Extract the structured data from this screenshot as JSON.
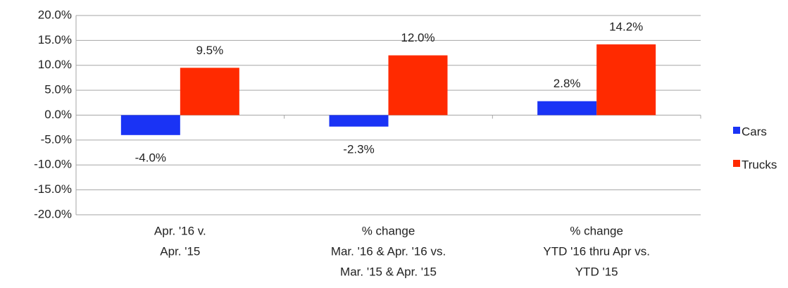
{
  "chart_data": {
    "type": "bar",
    "categories": [
      [
        "Apr. '16 v.",
        "Apr. '15"
      ],
      [
        "% change",
        "Mar. '16 & Apr. '16 vs.",
        "Mar. '15 & Apr. '15"
      ],
      [
        "% change",
        "YTD '16 thru Apr vs.",
        "YTD '15"
      ]
    ],
    "series": [
      {
        "name": "Cars",
        "color": "#1a33f5",
        "values": [
          -4.0,
          -2.3,
          2.8
        ],
        "value_labels": [
          "-4.0%",
          "-2.3%",
          "2.8%"
        ]
      },
      {
        "name": "Trucks",
        "color": "#ff2a00",
        "values": [
          9.5,
          12.0,
          14.2
        ],
        "value_labels": [
          "9.5%",
          "12.0%",
          "14.2%"
        ]
      }
    ],
    "ylim": [
      -20,
      20
    ],
    "yticks": [
      {
        "value": -20,
        "label": "-20.0%"
      },
      {
        "value": -15,
        "label": "-15.0%"
      },
      {
        "value": -10,
        "label": "-10.0%"
      },
      {
        "value": -5,
        "label": "-5.0%"
      },
      {
        "value": 0,
        "label": "0.0%"
      },
      {
        "value": 5,
        "label": "5.0%"
      },
      {
        "value": 10,
        "label": "10.0%"
      },
      {
        "value": 15,
        "label": "15.0%"
      },
      {
        "value": 20,
        "label": "20.0%"
      }
    ],
    "grid": true,
    "legend": "right"
  }
}
